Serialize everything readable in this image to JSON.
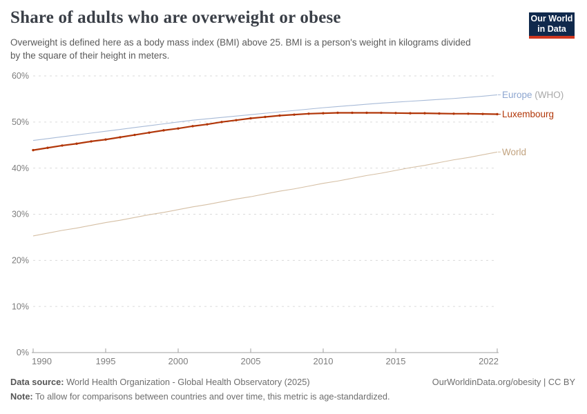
{
  "header": {
    "subtitle_line1": "Overweight is defined here as a body mass index (BMI) above 25. BMI is a person's weight in kilograms divided",
    "subtitle_line2": "by the square of their height in meters.",
    "logo": {
      "line1": "Our World",
      "line2": "in Data",
      "bg_color": "#10294c",
      "accent_color": "#d0371f"
    }
  },
  "chart_data": {
    "type": "line",
    "title": "Share of adults who are overweight or obese",
    "xlabel": "",
    "ylabel": "",
    "xlim": [
      1990,
      2022
    ],
    "ylim": [
      0,
      60
    ],
    "grid": "horizontal-dashed",
    "legend_position": "right-of-line-ends",
    "y_tick_suffix": "%",
    "yticks": [
      0,
      10,
      20,
      30,
      40,
      50,
      60
    ],
    "xticks": [
      1990,
      1995,
      2000,
      2005,
      2010,
      2015,
      2022
    ],
    "x": [
      1990,
      1991,
      1992,
      1993,
      1994,
      1995,
      1996,
      1997,
      1998,
      1999,
      2000,
      2001,
      2002,
      2003,
      2004,
      2005,
      2006,
      2007,
      2008,
      2009,
      2010,
      2011,
      2012,
      2013,
      2014,
      2015,
      2016,
      2017,
      2018,
      2019,
      2020,
      2021,
      2022
    ],
    "series": [
      {
        "name": "Europe (WHO)",
        "label_main": "Europe",
        "label_suffix": " (WHO)",
        "line_color": "#a7bad7",
        "label_color": "#8da6d0",
        "suffix_color": "#a8a8a8",
        "markers": false,
        "line_width": 1.1,
        "values": [
          46.0,
          46.4,
          46.8,
          47.2,
          47.6,
          48.0,
          48.4,
          48.8,
          49.2,
          49.6,
          50.0,
          50.4,
          50.7,
          51.0,
          51.3,
          51.6,
          51.9,
          52.2,
          52.5,
          52.8,
          53.1,
          53.35,
          53.6,
          53.85,
          54.1,
          54.3,
          54.5,
          54.7,
          54.9,
          55.1,
          55.35,
          55.6,
          55.9
        ]
      },
      {
        "name": "Luxembourg",
        "label_main": "Luxembourg",
        "label_suffix": "",
        "line_color": "#b13507",
        "label_color": "#b13507",
        "suffix_color": "#b13507",
        "markers": true,
        "line_width": 2.2,
        "values": [
          43.9,
          44.4,
          44.9,
          45.3,
          45.8,
          46.2,
          46.7,
          47.2,
          47.7,
          48.2,
          48.6,
          49.1,
          49.5,
          50.0,
          50.4,
          50.8,
          51.1,
          51.4,
          51.6,
          51.8,
          51.9,
          52.0,
          52.0,
          52.0,
          52.0,
          51.95,
          51.9,
          51.9,
          51.85,
          51.8,
          51.8,
          51.75,
          51.7
        ]
      },
      {
        "name": "World",
        "label_main": "World",
        "label_suffix": "",
        "line_color": "#d5bfa4",
        "label_color": "#c1a27e",
        "suffix_color": "#c1a27e",
        "markers": false,
        "line_width": 1.1,
        "values": [
          25.3,
          25.9,
          26.5,
          27.0,
          27.6,
          28.2,
          28.7,
          29.3,
          29.9,
          30.4,
          31.0,
          31.6,
          32.1,
          32.7,
          33.3,
          33.8,
          34.4,
          35.0,
          35.5,
          36.1,
          36.7,
          37.2,
          37.8,
          38.4,
          38.9,
          39.5,
          40.1,
          40.6,
          41.2,
          41.8,
          42.3,
          42.9,
          43.5
        ]
      }
    ],
    "axis_color": "#9f9f9f",
    "grid_color": "#dadada",
    "tick_label_color": "#7d7d7d"
  },
  "footer": {
    "source_prefix": "Data source:",
    "source_text": " World Health Organization - Global Health Observatory (2025)",
    "rights": "OurWorldinData.org/obesity | CC BY",
    "note_prefix": "Note:",
    "note_text": " To allow for comparisons between countries and over time, this metric is age-standardized."
  }
}
